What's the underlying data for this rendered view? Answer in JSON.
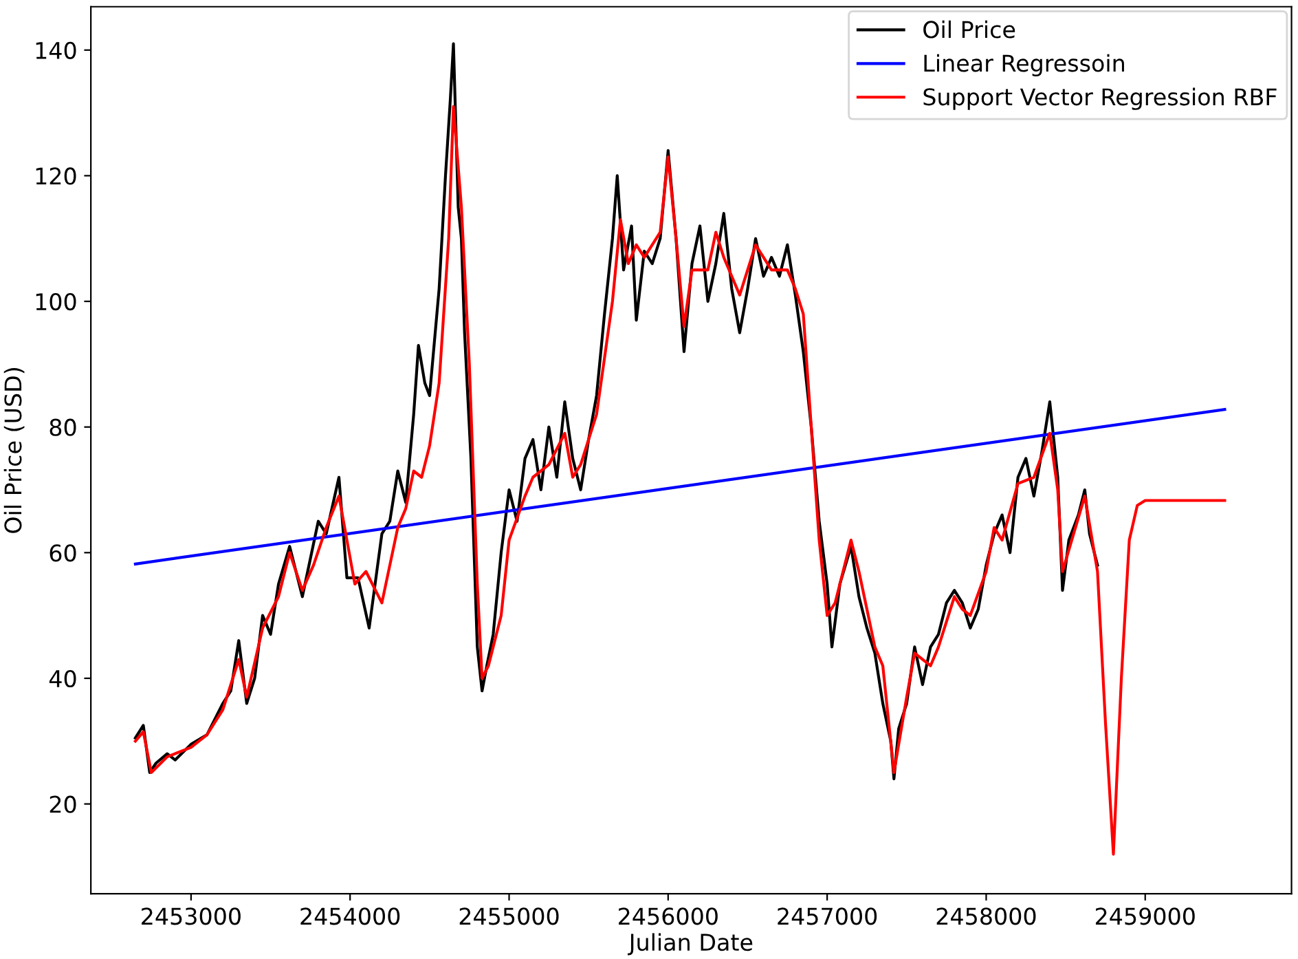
{
  "chart_data": {
    "type": "line",
    "xlabel": "Julian Date",
    "ylabel": "Oil Price (USD)",
    "xlim": [
      2452370,
      2459920
    ],
    "ylim": [
      5.7,
      146.9
    ],
    "xticks": [
      2453000,
      2454000,
      2455000,
      2456000,
      2457000,
      2458000,
      2459000
    ],
    "yticks": [
      20,
      40,
      60,
      80,
      100,
      120,
      140
    ],
    "grid": false,
    "legend": "top right",
    "marker": "none",
    "line_style": "solid",
    "series": [
      {
        "name": "Oil Price",
        "color": "#000000",
        "x": [
          2452650,
          2452700,
          2452740,
          2452780,
          2452850,
          2452900,
          2453000,
          2453100,
          2453200,
          2453250,
          2453300,
          2453350,
          2453400,
          2453450,
          2453500,
          2453550,
          2453620,
          2453700,
          2453750,
          2453800,
          2453850,
          2453930,
          2453980,
          2454050,
          2454120,
          2454200,
          2454250,
          2454300,
          2454350,
          2454400,
          2454430,
          2454470,
          2454500,
          2454560,
          2454600,
          2454630,
          2454650,
          2454680,
          2454700,
          2454720,
          2454760,
          2454800,
          2454830,
          2454860,
          2454900,
          2454950,
          2455000,
          2455050,
          2455100,
          2455150,
          2455200,
          2455250,
          2455300,
          2455350,
          2455400,
          2455450,
          2455500,
          2455550,
          2455600,
          2455650,
          2455680,
          2455720,
          2455770,
          2455800,
          2455850,
          2455900,
          2455950,
          2456000,
          2456050,
          2456100,
          2456150,
          2456200,
          2456250,
          2456300,
          2456350,
          2456400,
          2456450,
          2456500,
          2456550,
          2456600,
          2456650,
          2456700,
          2456750,
          2456800,
          2456850,
          2456900,
          2456950,
          2457000,
          2457030,
          2457080,
          2457150,
          2457200,
          2457250,
          2457300,
          2457350,
          2457400,
          2457420,
          2457450,
          2457500,
          2457550,
          2457600,
          2457650,
          2457700,
          2457750,
          2457800,
          2457850,
          2457900,
          2457950,
          2458000,
          2458050,
          2458100,
          2458150,
          2458200,
          2458250,
          2458300,
          2458350,
          2458400,
          2458450,
          2458480,
          2458520,
          2458580,
          2458620,
          2458650,
          2458700
        ],
        "values": [
          30.5,
          32.5,
          25,
          26.5,
          28,
          27,
          29.5,
          31,
          36,
          38,
          46,
          36,
          40,
          50,
          47,
          55,
          61,
          53,
          59,
          65,
          63,
          72,
          56,
          56,
          48,
          63,
          65,
          73,
          68,
          82,
          93,
          87,
          85,
          102,
          120,
          132,
          141,
          115,
          110,
          95,
          75,
          45,
          38,
          42,
          47,
          60,
          70,
          65,
          75,
          78,
          70,
          80,
          72,
          84,
          75,
          70,
          78,
          85,
          98,
          110,
          120,
          105,
          112,
          97,
          108,
          106,
          110,
          124,
          110,
          92,
          106,
          112,
          100,
          106,
          114,
          102,
          95,
          102,
          110,
          104,
          107,
          104,
          109,
          101,
          92,
          80,
          65,
          55,
          45,
          55,
          61,
          53,
          48,
          44,
          36,
          30,
          24,
          32,
          36,
          45,
          39,
          45,
          47,
          52,
          54,
          52,
          48,
          51,
          58,
          63,
          66,
          60,
          72,
          75,
          69,
          76,
          84,
          72,
          54,
          62,
          66,
          70,
          63,
          58
        ]
      },
      {
        "name": "Linear Regressoin",
        "color": "#0000ff",
        "x": [
          2452650,
          2459500
        ],
        "values": [
          58.2,
          82.8
        ]
      },
      {
        "name": "Support Vector Regression RBF",
        "color": "#ff0000",
        "x": [
          2452650,
          2452700,
          2452750,
          2452850,
          2453000,
          2453100,
          2453200,
          2453300,
          2453350,
          2453450,
          2453550,
          2453620,
          2453700,
          2453770,
          2453850,
          2453930,
          2454030,
          2454100,
          2454200,
          2454300,
          2454350,
          2454400,
          2454450,
          2454500,
          2454560,
          2454620,
          2454650,
          2454700,
          2454750,
          2454800,
          2454830,
          2454870,
          2454950,
          2455000,
          2455100,
          2455150,
          2455250,
          2455350,
          2455400,
          2455450,
          2455550,
          2455650,
          2455700,
          2455750,
          2455800,
          2455850,
          2455950,
          2456000,
          2456050,
          2456100,
          2456150,
          2456250,
          2456300,
          2456350,
          2456400,
          2456450,
          2456550,
          2456650,
          2456750,
          2456800,
          2456850,
          2456900,
          2456950,
          2457000,
          2457050,
          2457150,
          2457200,
          2457300,
          2457350,
          2457420,
          2457500,
          2457550,
          2457650,
          2457700,
          2457800,
          2457850,
          2457900,
          2458000,
          2458050,
          2458100,
          2458200,
          2458300,
          2458400,
          2458450,
          2458480,
          2458550,
          2458620,
          2458700,
          2458750,
          2458800,
          2458850,
          2458900,
          2458950,
          2459000,
          2459500
        ],
        "values": [
          30,
          31.5,
          25,
          27.5,
          29,
          31,
          35,
          43,
          37,
          48,
          53,
          60,
          54,
          58,
          64,
          69,
          55,
          57,
          52,
          64,
          67,
          73,
          72,
          77,
          87,
          110,
          131,
          115,
          90,
          55,
          40,
          42,
          50,
          62,
          69,
          72,
          74,
          79,
          72,
          74,
          82,
          100,
          113,
          106,
          109,
          107,
          111,
          123,
          110,
          96,
          105,
          105,
          111,
          107,
          104,
          101,
          109,
          105,
          105,
          102,
          98,
          80,
          62,
          50,
          52,
          62,
          57,
          45,
          42,
          25,
          37,
          44,
          42,
          45,
          53,
          51,
          50,
          57,
          64,
          62,
          71,
          72,
          79,
          70,
          57,
          63,
          69,
          57,
          33,
          12,
          40,
          62,
          67.5,
          68.3,
          68.3
        ]
      }
    ]
  }
}
